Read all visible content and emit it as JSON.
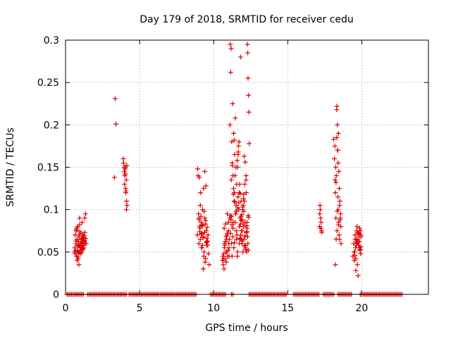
{
  "chart_data": {
    "type": "scatter",
    "title": "Day 179 of 2018, SRMTID for receiver cedu",
    "xlabel": "GPS time / hours",
    "ylabel": "SRMTID / TECUs",
    "xlim": [
      0,
      24.5
    ],
    "ylim": [
      0,
      0.3
    ],
    "x_ticks": [
      0,
      5,
      10,
      15,
      20
    ],
    "x_tick_labels": [
      "0",
      "5",
      "10",
      "15",
      "20"
    ],
    "y_ticks": [
      0,
      0.05,
      0.1,
      0.15,
      0.2,
      0.25,
      0.3
    ],
    "y_tick_labels": [
      "0",
      "0.05",
      "0.1",
      "0.15",
      "0.2",
      "0.25",
      "0.3"
    ],
    "grid": true,
    "marker": "plus",
    "color": "#e00000",
    "zero_value_intervals": [
      [
        0.1,
        1.2
      ],
      [
        1.5,
        3.6
      ],
      [
        3.7,
        4.1
      ],
      [
        4.3,
        8.8
      ],
      [
        9.8,
        10.8
      ],
      [
        11.2,
        11.3
      ],
      [
        12.4,
        14.9
      ],
      [
        15.4,
        17.1
      ],
      [
        17.4,
        18.1
      ],
      [
        18.4,
        19.3
      ],
      [
        19.9,
        22.7
      ]
    ],
    "series": [
      {
        "name": "SRMTID",
        "x": [
          0.6,
          0.62,
          0.65,
          0.68,
          0.7,
          0.72,
          0.75,
          0.78,
          0.8,
          0.82,
          0.85,
          0.88,
          0.9,
          0.92,
          0.95,
          0.98,
          1.0,
          1.02,
          1.05,
          1.08,
          1.1,
          1.12,
          1.15,
          1.18,
          1.2,
          1.22,
          1.25,
          1.3,
          1.35,
          1.4,
          0.7,
          0.75,
          0.8,
          0.85,
          0.9,
          0.95,
          1.0,
          1.05,
          1.1,
          1.15,
          1.2,
          1.25,
          1.3,
          0.66,
          0.74,
          0.83,
          0.87,
          0.93,
          0.97,
          1.03,
          1.08,
          1.13,
          1.17,
          1.23,
          1.27,
          1.33,
          1.37,
          0.79,
          0.91,
          1.01,
          3.3,
          3.35,
          3.4,
          3.9,
          3.95,
          4.0,
          4.02,
          4.05,
          4.08,
          4.1,
          4.12,
          4.15,
          3.92,
          3.97,
          4.03,
          4.07,
          4.11,
          4.13,
          3.98,
          4.04,
          8.9,
          8.92,
          8.95,
          8.98,
          9.0,
          9.05,
          9.1,
          9.15,
          9.2,
          9.25,
          9.3,
          9.35,
          9.4,
          9.45,
          9.5,
          9.55,
          9.6,
          9.65,
          9.7,
          9.02,
          9.08,
          9.12,
          9.18,
          9.22,
          9.28,
          9.32,
          9.38,
          9.42,
          9.48,
          9.52,
          9.58,
          9.62,
          9.06,
          9.14,
          9.24,
          9.34,
          9.44,
          9.54,
          9.16,
          9.26,
          9.36,
          9.46,
          9.56,
          9.04,
          9.3,
          9.5,
          9.1,
          9.4,
          9.2,
          9.0,
          10.6,
          10.62,
          10.65,
          10.68,
          10.7,
          10.72,
          10.75,
          10.78,
          10.8,
          10.82,
          10.85,
          10.88,
          10.9,
          10.92,
          10.95,
          10.98,
          11.0,
          11.02,
          11.05,
          11.08,
          10.66,
          10.74,
          10.84,
          10.94,
          11.04,
          10.71,
          10.79,
          10.89,
          10.99,
          11.06,
          11.1,
          11.12,
          11.15,
          11.18,
          11.2,
          11.22,
          11.25,
          11.28,
          11.3,
          11.32,
          11.35,
          11.38,
          11.4,
          11.42,
          11.45,
          11.48,
          11.5,
          11.52,
          11.55,
          11.58,
          11.6,
          11.62,
          11.65,
          11.68,
          11.7,
          11.72,
          11.75,
          11.78,
          11.8,
          11.82,
          11.85,
          11.88,
          11.9,
          11.92,
          11.95,
          11.98,
          12.0,
          12.02,
          12.05,
          12.08,
          12.1,
          12.12,
          12.15,
          12.18,
          12.2,
          12.22,
          12.25,
          12.28,
          12.3,
          12.32,
          12.35,
          12.38,
          12.4,
          11.14,
          11.24,
          11.34,
          11.44,
          11.54,
          11.64,
          11.74,
          11.84,
          11.94,
          12.04,
          12.14,
          12.24,
          12.34,
          11.16,
          11.26,
          11.36,
          11.46,
          11.56,
          11.66,
          11.76,
          11.86,
          11.96,
          12.06,
          12.16,
          12.26,
          12.36,
          11.19,
          11.29,
          11.39,
          11.49,
          11.59,
          11.69,
          11.79,
          11.89,
          11.99,
          12.09,
          12.19,
          12.29,
          11.21,
          11.31,
          11.41,
          11.51,
          11.61,
          11.71,
          11.81,
          11.91,
          12.01,
          12.11,
          12.21,
          12.31,
          11.13,
          11.23,
          11.33,
          11.43,
          11.53,
          11.63,
          11.73,
          11.83,
          11.93,
          12.03,
          12.13,
          12.23,
          12.33,
          17.15,
          17.18,
          17.2,
          17.22,
          17.25,
          17.28,
          17.3,
          17.16,
          17.24,
          18.1,
          18.15,
          18.2,
          18.22,
          18.25,
          18.28,
          18.3,
          18.32,
          18.35,
          18.38,
          18.4,
          18.42,
          18.45,
          18.48,
          18.5,
          18.52,
          18.55,
          18.58,
          18.6,
          18.18,
          18.24,
          18.27,
          18.33,
          18.36,
          18.41,
          18.44,
          18.47,
          18.53,
          18.57,
          18.21,
          18.31,
          18.39,
          18.49,
          18.26,
          18.34,
          18.43,
          19.4,
          19.45,
          19.5,
          19.52,
          19.55,
          19.58,
          19.6,
          19.62,
          19.65,
          19.68,
          19.7,
          19.72,
          19.75,
          19.78,
          19.8,
          19.82,
          19.85,
          19.88,
          19.9,
          19.92,
          19.95,
          19.48,
          19.56,
          19.64,
          19.74,
          19.84,
          19.94,
          19.53,
          19.63,
          19.73,
          19.83,
          19.93,
          19.59,
          19.69,
          19.79,
          19.89
        ],
        "y": [
          0.05,
          0.055,
          0.07,
          0.052,
          0.06,
          0.075,
          0.045,
          0.065,
          0.05,
          0.08,
          0.042,
          0.058,
          0.035,
          0.068,
          0.09,
          0.055,
          0.062,
          0.048,
          0.072,
          0.056,
          0.05,
          0.085,
          0.06,
          0.053,
          0.067,
          0.058,
          0.064,
          0.09,
          0.095,
          0.06,
          0.063,
          0.078,
          0.057,
          0.044,
          0.07,
          0.082,
          0.052,
          0.059,
          0.066,
          0.054,
          0.061,
          0.069,
          0.073,
          0.048,
          0.076,
          0.051,
          0.062,
          0.049,
          0.074,
          0.058,
          0.065,
          0.057,
          0.07,
          0.055,
          0.063,
          0.06,
          0.066,
          0.04,
          0.058,
          0.052,
          0.138,
          0.231,
          0.201,
          0.16,
          0.15,
          0.14,
          0.148,
          0.125,
          0.122,
          0.135,
          0.11,
          0.105,
          0.155,
          0.145,
          0.15,
          0.12,
          0.1,
          0.152,
          0.13,
          0.142,
          0.07,
          0.148,
          0.14,
          0.095,
          0.06,
          0.08,
          0.065,
          0.085,
          0.072,
          0.1,
          0.068,
          0.05,
          0.09,
          0.042,
          0.075,
          0.062,
          0.058,
          0.048,
          0.035,
          0.088,
          0.078,
          0.12,
          0.055,
          0.082,
          0.067,
          0.125,
          0.073,
          0.038,
          0.128,
          0.058,
          0.063,
          0.07,
          0.074,
          0.092,
          0.058,
          0.045,
          0.083,
          0.066,
          0.071,
          0.081,
          0.098,
          0.087,
          0.079,
          0.138,
          0.03,
          0.061,
          0.105,
          0.145,
          0.055,
          0.09,
          0.04,
          0.045,
          0.035,
          0.048,
          0.03,
          0.055,
          0.06,
          0.042,
          0.083,
          0.05,
          0.038,
          0.065,
          0.07,
          0.095,
          0.045,
          0.052,
          0.075,
          0.06,
          0.045,
          0.09,
          0.042,
          0.058,
          0.068,
          0.072,
          0.055,
          0.078,
          0.062,
          0.05,
          0.085,
          0.065,
          0.2,
          0.295,
          0.262,
          0.29,
          0.06,
          0.18,
          0.155,
          0.225,
          0.14,
          0.085,
          0.19,
          0.11,
          0.12,
          0.165,
          0.085,
          0.095,
          0.15,
          0.105,
          0.065,
          0.07,
          0.045,
          0.15,
          0.165,
          0.175,
          0.1,
          0.12,
          0.13,
          0.09,
          0.065,
          0.28,
          0.11,
          0.065,
          0.06,
          0.075,
          0.1,
          0.05,
          0.105,
          0.08,
          0.065,
          0.11,
          0.13,
          0.085,
          0.055,
          0.135,
          0.12,
          0.05,
          0.085,
          0.295,
          0.285,
          0.255,
          0.235,
          0.215,
          0.178,
          0.072,
          0.045,
          0.125,
          0.14,
          0.098,
          0.115,
          0.08,
          0.092,
          0.063,
          0.098,
          0.058,
          0.074,
          0.052,
          0.088,
          0.152,
          0.055,
          0.208,
          0.13,
          0.168,
          0.066,
          0.087,
          0.103,
          0.163,
          0.053,
          0.078,
          0.091,
          0.135,
          0.068,
          0.182,
          0.095,
          0.158,
          0.108,
          0.119,
          0.075,
          0.083,
          0.057,
          0.14,
          0.068,
          0.092,
          0.078,
          0.061,
          0.098,
          0.05,
          0.18,
          0.083,
          0.094,
          0.113,
          0.069,
          0.073,
          0.06,
          0.093,
          0.082,
          0.118,
          0.109,
          0.075,
          0.102,
          0.06,
          0.07,
          0.088,
          0.118,
          0.156,
          0.081,
          0.093,
          0.08,
          0.105,
          0.1,
          0.09,
          0.085,
          0.075,
          0.073,
          0.095,
          0.078,
          0.183,
          0.16,
          0.135,
          0.035,
          0.09,
          0.14,
          0.218,
          0.222,
          0.2,
          0.17,
          0.155,
          0.19,
          0.145,
          0.125,
          0.105,
          0.11,
          0.09,
          0.08,
          0.06,
          0.175,
          0.15,
          0.065,
          0.075,
          0.17,
          0.1,
          0.085,
          0.07,
          0.088,
          0.095,
          0.12,
          0.185,
          0.115,
          0.065,
          0.132,
          0.098,
          0.082,
          0.045,
          0.06,
          0.04,
          0.05,
          0.07,
          0.055,
          0.028,
          0.065,
          0.075,
          0.08,
          0.035,
          0.062,
          0.022,
          0.058,
          0.072,
          0.068,
          0.078,
          0.052,
          0.075,
          0.048,
          0.07,
          0.05,
          0.065,
          0.06,
          0.073,
          0.055,
          0.068,
          0.046,
          0.058,
          0.064,
          0.062,
          0.056,
          0.042,
          0.061,
          0.071,
          0.053
        ]
      }
    ]
  }
}
